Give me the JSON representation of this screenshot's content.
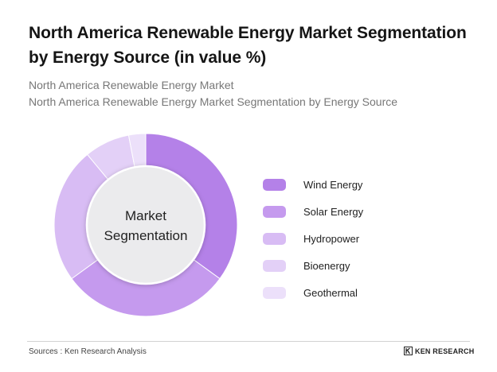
{
  "title": "North America Renewable Energy Market Segmentation by Energy Source (in value %)",
  "subtitle_line1": "North America Renewable Energy Market",
  "subtitle_line2": "North America Renewable Energy Market Segmentation by Energy Source",
  "footer": {
    "source": "Sources : Ken Research Analysis",
    "brand": "KEN RESEARCH",
    "brand_icon": "ken-research-logo-icon"
  },
  "chart_data": {
    "type": "pie",
    "variant": "donut",
    "center_label_line1": "Market",
    "center_label_line2": "Segmentation",
    "legend_position": "right",
    "categories": [
      "Wind Energy",
      "Solar Energy",
      "Hydropower",
      "Bioenergy",
      "Geothermal"
    ],
    "values": [
      35,
      30,
      24,
      8,
      3
    ],
    "colors": [
      "#b481e8",
      "#c59aee",
      "#d8bcf4",
      "#e3d0f7",
      "#ece0fa"
    ],
    "center_color": "#ebebed"
  }
}
